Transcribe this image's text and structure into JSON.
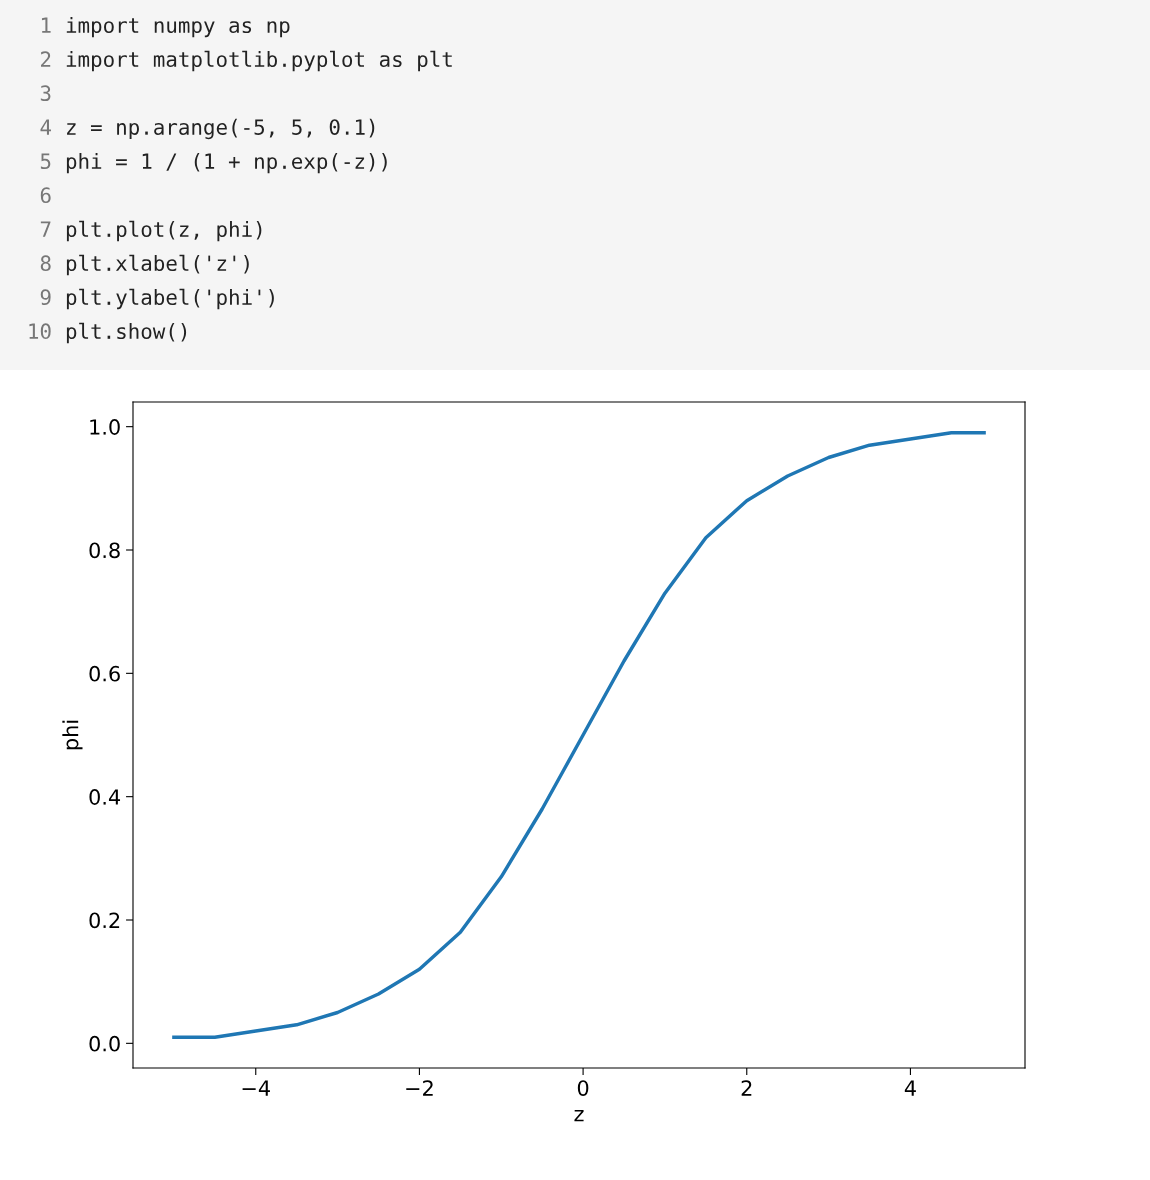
{
  "chart_data": {
    "type": "line",
    "xlabel": "z",
    "ylabel": "phi",
    "annotations": [
      "1 import numpy as np",
      "2 import matplotlib.pyplot as plt",
      "3",
      "4 z = np.arange(-5, 5, 0.1)",
      "5 phi = 1 / (1 + np.exp(-z))",
      "6",
      "7 plt.plot(z, phi)",
      "8 plt.xlabel('z')",
      "9 plt.ylabel('phi')",
      "10 plt.show()"
    ],
    "series": [
      {
        "color": "#1f77b4",
        "x": [
          -5,
          -4.5,
          -4,
          -3.5,
          -3,
          -2.5,
          -2,
          -1.5,
          -1,
          -0.5,
          -0.25,
          0,
          0.25,
          0.5,
          1,
          1.5,
          2,
          2.5,
          3,
          3.5,
          4,
          4.5,
          4.9
        ],
        "values": [
          0.01,
          0.01,
          0.02,
          0.03,
          0.05,
          0.08,
          0.12,
          0.18,
          0.27,
          0.38,
          0.44,
          0.5,
          0.56,
          0.62,
          0.73,
          0.82,
          0.88,
          0.92,
          0.95,
          0.97,
          0.98,
          0.99,
          0.99
        ]
      }
    ],
    "xlim": [
      -5.5,
      5.4
    ],
    "xticks": [
      {
        "value": -4,
        "label": "−4"
      },
      {
        "value": -2,
        "label": "−2"
      },
      0,
      2,
      4
    ],
    "ylim": [
      -0.04,
      1.04
    ],
    "yticks": [
      {
        "value": 0,
        "label": "0.0"
      },
      0.2,
      0.4,
      0.6,
      0.8,
      {
        "value": 1,
        "label": "1.0"
      }
    ],
    "grid": false,
    "legend": false
  }
}
